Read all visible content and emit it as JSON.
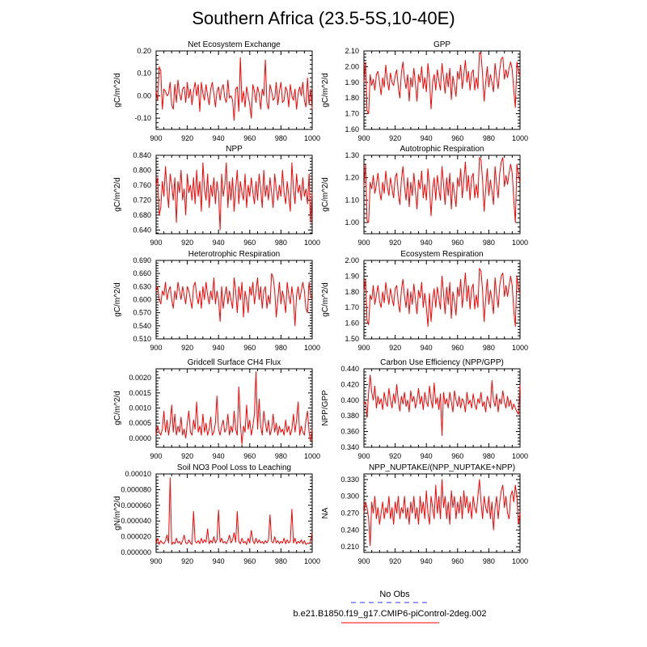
{
  "title": "Southern Africa (23.5-5S,10-40E)",
  "legend": {
    "obs_label": "No Obs",
    "obs_color": "#3333ff",
    "model_label": "b.e21.B1850.f19_g17.CMIP6-piControl-2deg.002",
    "model_color": "#ff0000"
  },
  "series_color": "#ff0000",
  "chart_data": [
    {
      "type": "line",
      "title": "Net Ecosystem Exchange",
      "ylabel": "gC/m^2/d",
      "xlim": [
        900,
        1000
      ],
      "ylim": [
        -0.15,
        0.2
      ],
      "xticks": [
        "900",
        "920",
        "940",
        "960",
        "980",
        "1000"
      ],
      "yticks": [
        "-0.10",
        "0.00",
        "0.10",
        "0.20"
      ],
      "x_start": 900,
      "values": [
        0.02,
        -0.02,
        0.13,
        0.11,
        -0.06,
        0.03,
        0.02,
        0.0,
        0.01,
        0.06,
        -0.04,
        -0.06,
        0.05,
        -0.03,
        0.07,
        0.01,
        -0.02,
        0.03,
        0.04,
        -0.03,
        0.06,
        -0.01,
        0.03,
        -0.04,
        0.02,
        0.06,
        0.0,
        0.05,
        -0.07,
        0.06,
        0.01,
        -0.02,
        0.05,
        0.0,
        -0.04,
        0.03,
        0.06,
        0.01,
        -0.05,
        0.02,
        0.04,
        -0.02,
        0.03,
        0.05,
        -0.01,
        -0.03,
        0.07,
        -0.01,
        0.0,
        -0.02,
        -0.11,
        0.03,
        0.04,
        -0.07,
        0.17,
        -0.03,
        0.02,
        -0.05,
        0.04,
        0.0,
        -0.04,
        -0.1,
        0.05,
        0.02,
        -0.03,
        0.04,
        0.01,
        -0.06,
        0.03,
        0.0,
        0.16,
        -0.03,
        -0.06,
        0.05,
        0.02,
        -0.02,
        -0.01,
        0.06,
        -0.04,
        0.02,
        0.06,
        -0.03,
        -0.02,
        0.04,
        0.02,
        -0.05,
        0.05,
        0.0,
        -0.02,
        0.03,
        -0.06,
        0.01,
        0.04,
        0.0,
        0.06,
        -0.02,
        -0.05,
        0.08,
        -0.04,
        0.03,
        -0.06
      ]
    },
    {
      "type": "line",
      "title": "GPP",
      "ylabel": "gC/m^2/d",
      "xlim": [
        900,
        1000
      ],
      "ylim": [
        1.6,
        2.1
      ],
      "xticks": [
        "900",
        "920",
        "940",
        "960",
        "980",
        "1000"
      ],
      "yticks": [
        "1.60",
        "1.70",
        "1.80",
        "1.90",
        "2.00",
        "2.10"
      ],
      "x_start": 900,
      "values": [
        1.9,
        2.03,
        1.72,
        1.7,
        1.95,
        1.88,
        1.92,
        1.85,
        1.95,
        1.97,
        1.9,
        1.82,
        1.93,
        1.87,
        2.01,
        1.91,
        1.85,
        1.96,
        1.9,
        1.88,
        1.94,
        1.98,
        1.87,
        1.8,
        1.96,
        2.03,
        1.92,
        1.86,
        1.95,
        1.78,
        1.93,
        1.87,
        1.99,
        1.89,
        1.78,
        1.95,
        1.9,
        2.0,
        1.86,
        1.93,
        1.84,
        2.02,
        1.92,
        1.73,
        1.9,
        1.95,
        1.85,
        1.98,
        1.91,
        1.85,
        2.02,
        1.93,
        1.83,
        1.96,
        1.87,
        1.99,
        1.79,
        1.94,
        1.88,
        1.81,
        1.97,
        1.92,
        2.01,
        1.86,
        1.95,
        2.04,
        1.9,
        1.97,
        1.85,
        1.96,
        1.98,
        1.85,
        1.93,
        1.86,
        2.09,
        2.08,
        1.95,
        1.78,
        1.9,
        2.0,
        1.87,
        1.95,
        1.9,
        1.84,
        2.02,
        1.93,
        1.86,
        1.98,
        2.05,
        2.06,
        1.92,
        1.98,
        1.93,
        1.99,
        2.03,
        1.98,
        1.85,
        1.74,
        2.03,
        1.97,
        1.94
      ]
    },
    {
      "type": "line",
      "title": "NPP",
      "ylabel": "gC/m^2/d",
      "xlim": [
        900,
        1000
      ],
      "ylim": [
        0.63,
        0.84
      ],
      "xticks": [
        "900",
        "920",
        "940",
        "960",
        "980",
        "1000"
      ],
      "yticks": [
        "0.640",
        "0.680",
        "0.720",
        "0.760",
        "0.800",
        "0.840"
      ],
      "x_start": 900,
      "values": [
        0.76,
        0.78,
        0.68,
        0.7,
        0.77,
        0.73,
        0.81,
        0.75,
        0.7,
        0.79,
        0.76,
        0.72,
        0.78,
        0.66,
        0.77,
        0.74,
        0.8,
        0.72,
        0.75,
        0.68,
        0.79,
        0.74,
        0.76,
        0.72,
        0.78,
        0.71,
        0.8,
        0.73,
        0.77,
        0.69,
        0.82,
        0.75,
        0.72,
        0.79,
        0.7,
        0.76,
        0.73,
        0.78,
        0.71,
        0.77,
        0.74,
        0.64,
        0.79,
        0.73,
        0.76,
        0.82,
        0.7,
        0.77,
        0.72,
        0.78,
        0.69,
        0.75,
        0.8,
        0.71,
        0.77,
        0.74,
        0.72,
        0.79,
        0.7,
        0.76,
        0.73,
        0.78,
        0.74,
        0.71,
        0.77,
        0.72,
        0.79,
        0.75,
        0.7,
        0.8,
        0.73,
        0.76,
        0.72,
        0.78,
        0.74,
        0.7,
        0.79,
        0.75,
        0.72,
        0.76,
        0.73,
        0.8,
        0.74,
        0.71,
        0.77,
        0.73,
        0.69,
        0.82,
        0.75,
        0.71,
        0.79,
        0.74,
        0.76,
        0.72,
        0.78,
        0.73,
        0.75,
        0.71,
        0.79,
        0.66,
        0.74
      ]
    },
    {
      "type": "line",
      "title": "Autotrophic Respiration",
      "ylabel": "gC/m^2/d",
      "xlim": [
        900,
        1000
      ],
      "ylim": [
        0.95,
        1.3
      ],
      "xticks": [
        "900",
        "920",
        "940",
        "960",
        "980",
        "1000"
      ],
      "yticks": [
        "1.00",
        "1.10",
        "1.20",
        "1.30"
      ],
      "x_start": 900,
      "values": [
        1.16,
        1.26,
        1.01,
        1.0,
        1.18,
        1.15,
        1.21,
        1.13,
        1.17,
        1.22,
        1.14,
        1.1,
        1.18,
        1.13,
        1.23,
        1.16,
        1.12,
        1.2,
        1.15,
        1.11,
        1.2,
        1.22,
        1.13,
        1.08,
        1.19,
        1.25,
        1.16,
        1.1,
        1.2,
        1.07,
        1.18,
        1.12,
        1.22,
        1.14,
        1.06,
        1.19,
        1.15,
        1.23,
        1.11,
        1.17,
        1.1,
        1.24,
        1.16,
        1.03,
        1.15,
        1.2,
        1.1,
        1.21,
        1.15,
        1.1,
        1.25,
        1.17,
        1.08,
        1.2,
        1.12,
        1.22,
        1.06,
        1.18,
        1.13,
        1.07,
        1.2,
        1.16,
        1.24,
        1.11,
        1.19,
        1.27,
        1.14,
        1.21,
        1.1,
        1.2,
        1.22,
        1.11,
        1.17,
        1.11,
        1.29,
        1.28,
        1.19,
        1.05,
        1.15,
        1.24,
        1.12,
        1.19,
        1.14,
        1.08,
        1.25,
        1.17,
        1.11,
        1.22,
        1.27,
        1.29,
        1.16,
        1.21,
        1.17,
        1.22,
        1.26,
        1.22,
        1.1,
        1.0,
        1.26,
        1.21,
        1.18
      ]
    },
    {
      "type": "line",
      "title": "Heterotrophic Respiration",
      "ylabel": "gC/m^2/d",
      "xlim": [
        900,
        1000
      ],
      "ylim": [
        0.51,
        0.69
      ],
      "xticks": [
        "900",
        "920",
        "940",
        "960",
        "980",
        "1000"
      ],
      "yticks": [
        "0.510",
        "0.540",
        "0.570",
        "0.600",
        "0.630",
        "0.660",
        "0.690"
      ],
      "x_start": 900,
      "values": [
        0.62,
        0.63,
        0.6,
        0.59,
        0.62,
        0.61,
        0.64,
        0.6,
        0.62,
        0.63,
        0.6,
        0.58,
        0.62,
        0.6,
        0.64,
        0.62,
        0.6,
        0.63,
        0.61,
        0.59,
        0.63,
        0.62,
        0.6,
        0.58,
        0.63,
        0.64,
        0.61,
        0.59,
        0.62,
        0.58,
        0.63,
        0.6,
        0.64,
        0.61,
        0.59,
        0.62,
        0.6,
        0.65,
        0.59,
        0.62,
        0.6,
        0.55,
        0.63,
        0.58,
        0.61,
        0.63,
        0.59,
        0.62,
        0.6,
        0.58,
        0.65,
        0.62,
        0.57,
        0.63,
        0.6,
        0.64,
        0.56,
        0.62,
        0.6,
        0.57,
        0.63,
        0.61,
        0.64,
        0.59,
        0.62,
        0.65,
        0.6,
        0.63,
        0.58,
        0.62,
        0.63,
        0.58,
        0.61,
        0.59,
        0.66,
        0.65,
        0.62,
        0.56,
        0.6,
        0.64,
        0.59,
        0.62,
        0.6,
        0.57,
        0.64,
        0.61,
        0.59,
        0.63,
        0.6,
        0.54,
        0.61,
        0.63,
        0.6,
        0.62,
        0.64,
        0.62,
        0.58,
        0.57,
        0.64,
        0.61,
        0.6
      ]
    },
    {
      "type": "line",
      "title": "Ecosystem Respiration",
      "ylabel": "gC/m^2/d",
      "xlim": [
        900,
        1000
      ],
      "ylim": [
        1.5,
        2.0
      ],
      "xticks": [
        "900",
        "920",
        "940",
        "960",
        "980",
        "1000"
      ],
      "yticks": [
        "1.50",
        "1.60",
        "1.70",
        "1.80",
        "1.90",
        "2.00"
      ],
      "x_start": 900,
      "values": [
        1.8,
        1.88,
        1.62,
        1.59,
        1.78,
        1.75,
        1.84,
        1.72,
        1.78,
        1.84,
        1.74,
        1.7,
        1.8,
        1.73,
        1.86,
        1.78,
        1.72,
        1.82,
        1.76,
        1.71,
        1.82,
        1.84,
        1.73,
        1.67,
        1.81,
        1.88,
        1.77,
        1.7,
        1.82,
        1.66,
        1.8,
        1.72,
        1.85,
        1.75,
        1.66,
        1.81,
        1.76,
        1.86,
        1.7,
        1.79,
        1.7,
        1.58,
        1.79,
        1.61,
        1.75,
        1.82,
        1.7,
        1.83,
        1.76,
        1.69,
        1.9,
        1.79,
        1.66,
        1.83,
        1.72,
        1.86,
        1.63,
        1.8,
        1.74,
        1.65,
        1.83,
        1.77,
        1.88,
        1.7,
        1.81,
        1.92,
        1.74,
        1.84,
        1.69,
        1.82,
        1.85,
        1.69,
        1.78,
        1.7,
        1.95,
        1.93,
        1.81,
        1.61,
        1.76,
        1.88,
        1.72,
        1.81,
        1.75,
        1.66,
        1.89,
        1.78,
        1.7,
        1.84,
        1.9,
        1.92,
        1.77,
        1.84,
        1.77,
        1.84,
        1.9,
        1.84,
        1.68,
        1.58,
        1.9,
        1.82,
        1.79
      ]
    },
    {
      "type": "line",
      "title": "Gridcell Surface CH4 Flux",
      "ylabel": "gC/m^2/d",
      "xlim": [
        900,
        1000
      ],
      "ylim": [
        -0.0003,
        0.0023
      ],
      "xticks": [
        "900",
        "920",
        "940",
        "960",
        "980",
        "1000"
      ],
      "yticks": [
        "0.0000",
        "0.0005",
        "0.0010",
        "0.0015",
        "0.0020"
      ],
      "x_start": 900,
      "values": [
        0.0001,
        0.0004,
        0.0002,
        0.0001,
        0.0003,
        0.0009,
        0.0002,
        0.0006,
        0.0001,
        0.0005,
        0.0011,
        0.0002,
        0.0008,
        0.0001,
        0.0004,
        0.0002,
        0.0007,
        0.0001,
        0.0003,
        0.0,
        0.0005,
        0.0009,
        0.0002,
        0.0001,
        0.0006,
        0.0003,
        0.0012,
        0.0002,
        0.0004,
        0.0001,
        0.0008,
        0.0002,
        0.0005,
        0.0001,
        0.0003,
        0.0007,
        0.0001,
        0.0002,
        0.0005,
        0.0014,
        0.0003,
        0.0001,
        0.0004,
        0.0006,
        0.0002,
        0.0003,
        0.0008,
        0.0001,
        0.0004,
        0.0002,
        0.0009,
        0.0003,
        0.0001,
        0.0017,
        0.0005,
        -0.0002,
        0.0004,
        0.0002,
        0.0011,
        0.0003,
        0.0006,
        0.0001,
        0.0004,
        0.0008,
        0.0022,
        0.0003,
        0.0013,
        0.0004,
        0.0001,
        0.0009,
        0.0005,
        0.0002,
        0.0006,
        0.0001,
        0.0003,
        0.0008,
        0.0002,
        0.0005,
        0.0001,
        0.0004,
        0.0002,
        0.0003,
        0.0001,
        0.0006,
        0.0002,
        0.0004,
        0.0001,
        0.0003,
        0.0008,
        0.0002,
        0.0006,
        0.0012,
        0.0001,
        0.0004,
        0.0002,
        0.0001,
        0.0006,
        0.0009,
        0.0002,
        -0.0001,
        0.0003
      ]
    },
    {
      "type": "line",
      "title": "Carbon Use Efficiency (NPP/GPP)",
      "ylabel": "NPP/GPP",
      "xlim": [
        900,
        1000
      ],
      "ylim": [
        0.34,
        0.44
      ],
      "xticks": [
        "900",
        "920",
        "940",
        "960",
        "980",
        "1000"
      ],
      "yticks": [
        "0.340",
        "0.360",
        "0.380",
        "0.400",
        "0.420",
        "0.440"
      ],
      "x_start": 900,
      "values": [
        0.395,
        0.398,
        0.378,
        0.41,
        0.432,
        0.41,
        0.4,
        0.418,
        0.39,
        0.405,
        0.395,
        0.402,
        0.388,
        0.41,
        0.398,
        0.392,
        0.415,
        0.4,
        0.39,
        0.408,
        0.396,
        0.42,
        0.4,
        0.386,
        0.405,
        0.395,
        0.41,
        0.392,
        0.4,
        0.385,
        0.412,
        0.398,
        0.405,
        0.39,
        0.4,
        0.415,
        0.395,
        0.405,
        0.388,
        0.41,
        0.398,
        0.392,
        0.418,
        0.4,
        0.39,
        0.422,
        0.395,
        0.403,
        0.388,
        0.408,
        0.355,
        0.41,
        0.395,
        0.402,
        0.39,
        0.41,
        0.398,
        0.385,
        0.412,
        0.4,
        0.392,
        0.405,
        0.39,
        0.402,
        0.398,
        0.385,
        0.41,
        0.395,
        0.4,
        0.39,
        0.408,
        0.395,
        0.388,
        0.402,
        0.396,
        0.41,
        0.392,
        0.398,
        0.385,
        0.405,
        0.398,
        0.39,
        0.425,
        0.4,
        0.392,
        0.408,
        0.385,
        0.402,
        0.395,
        0.412,
        0.398,
        0.39,
        0.405,
        0.392,
        0.4,
        0.388,
        0.395,
        0.39,
        0.385,
        0.382,
        0.42
      ]
    },
    {
      "type": "line",
      "title": "Soil NO3 Pool Loss to Leaching",
      "ylabel": "gN/m^2/d",
      "xlim": [
        900,
        1000
      ],
      "ylim": [
        0,
        0.0001
      ],
      "xticks": [
        "900",
        "920",
        "940",
        "960",
        "980",
        "1000"
      ],
      "yticks": [
        "0.000000",
        "0.000020",
        "0.000040",
        "0.000060",
        "0.000080",
        "0.00010"
      ],
      "x_start": 900,
      "values": [
        1.2e-05,
        1.8e-05,
        1e-05,
        1.5e-05,
        1.2e-05,
        1.1e-05,
        1.5e-05,
        2.2e-05,
        1.2e-05,
        9.5e-05,
        1e-05,
        1.3e-05,
        1.1e-05,
        1.8e-05,
        1.2e-05,
        1.4e-05,
        1e-05,
        1.5e-05,
        2.2e-05,
        1.2e-05,
        1.1e-05,
        1.6e-05,
        1.2e-05,
        1e-05,
        5.2e-05,
        1.4e-05,
        1.2e-05,
        1.5e-05,
        1.1e-05,
        1.8e-05,
        1.2e-05,
        1.6e-05,
        1.3e-05,
        3e-05,
        1.1e-05,
        1.5e-05,
        1.2e-05,
        2e-05,
        1.2e-05,
        1.6e-05,
        5.4e-05,
        1.3e-05,
        1.8e-05,
        1.2e-05,
        1.4e-05,
        1.1e-05,
        1.5e-05,
        2.2e-05,
        1.2e-05,
        1.6e-05,
        2.5e-05,
        1.3e-05,
        5.2e-05,
        1.4e-05,
        1.1e-05,
        1.8e-05,
        1.2e-05,
        1.4e-05,
        1e-05,
        1.8e-05,
        1.2e-05,
        2.8e-05,
        1.5e-05,
        1.1e-05,
        1.8e-05,
        1.2e-05,
        1.6e-05,
        1.2e-05,
        1.4e-05,
        1.1e-05,
        1.5e-05,
        1.2e-05,
        1.6e-05,
        4.8e-05,
        1.4e-05,
        1.2e-05,
        2e-05,
        1.2e-05,
        1.5e-05,
        1.1e-05,
        1.4e-05,
        1.2e-05,
        1.8e-05,
        1.1e-05,
        1.6e-05,
        1.2e-05,
        1.4e-05,
        5.5e-05,
        1.2e-05,
        1.8e-05,
        1.1e-05,
        1.4e-05,
        1.2e-05,
        1.6e-05,
        1.1e-05,
        1.5e-05,
        1e-05,
        1.2e-05,
        1.1e-05,
        1.4e-05,
        2.5e-05
      ]
    },
    {
      "type": "line",
      "title": "NPP_NUPTAKE/(NPP_NUPTAKE+NPP)",
      "ylabel": "NA",
      "xlim": [
        900,
        1000
      ],
      "ylim": [
        0.2,
        0.34
      ],
      "xticks": [
        "900",
        "920",
        "940",
        "960",
        "980",
        "1000"
      ],
      "yticks": [
        "0.210",
        "0.240",
        "0.270",
        "0.300",
        "0.330"
      ],
      "x_start": 900,
      "values": [
        0.27,
        0.29,
        0.28,
        0.26,
        0.212,
        0.29,
        0.27,
        0.3,
        0.26,
        0.28,
        0.25,
        0.27,
        0.29,
        0.26,
        0.28,
        0.27,
        0.3,
        0.26,
        0.28,
        0.25,
        0.29,
        0.27,
        0.3,
        0.26,
        0.28,
        0.27,
        0.3,
        0.26,
        0.28,
        0.25,
        0.29,
        0.27,
        0.3,
        0.26,
        0.28,
        0.25,
        0.3,
        0.27,
        0.29,
        0.26,
        0.31,
        0.27,
        0.25,
        0.3,
        0.28,
        0.26,
        0.32,
        0.27,
        0.3,
        0.26,
        0.33,
        0.28,
        0.3,
        0.26,
        0.29,
        0.25,
        0.31,
        0.28,
        0.3,
        0.26,
        0.29,
        0.27,
        0.3,
        0.26,
        0.31,
        0.28,
        0.3,
        0.27,
        0.29,
        0.26,
        0.3,
        0.28,
        0.27,
        0.3,
        0.33,
        0.29,
        0.26,
        0.3,
        0.28,
        0.27,
        0.3,
        0.26,
        0.29,
        0.24,
        0.28,
        0.3,
        0.26,
        0.29,
        0.31,
        0.32,
        0.28,
        0.3,
        0.27,
        0.26,
        0.3,
        0.31,
        0.29,
        0.32,
        0.3,
        0.25,
        0.27
      ]
    }
  ]
}
